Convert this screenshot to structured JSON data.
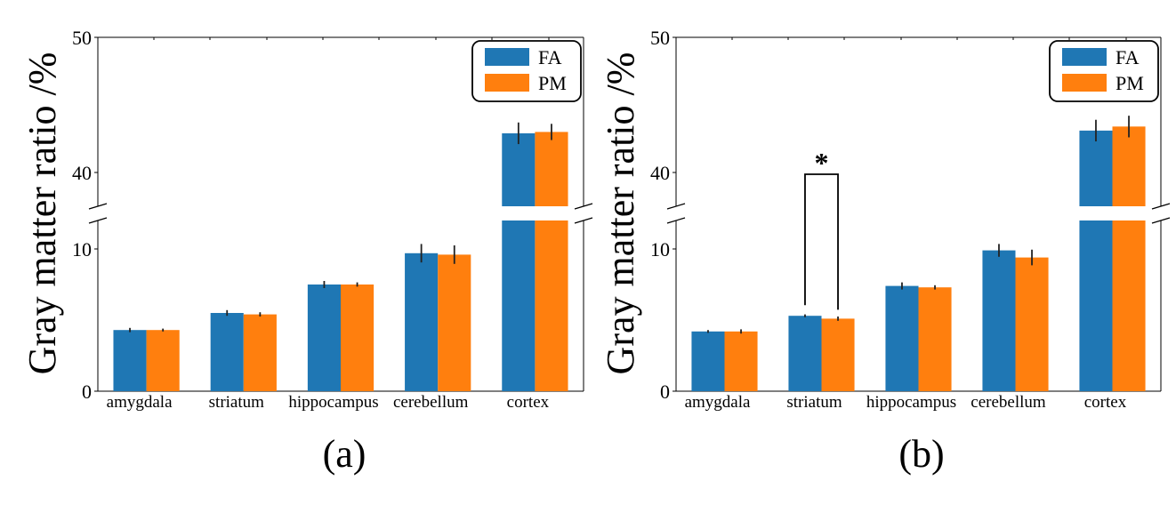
{
  "colors": {
    "FA": "#1f77b4",
    "PM": "#ff7f0e",
    "axis": "#000000"
  },
  "panel_labels": [
    "(a)",
    "(b)"
  ],
  "chart_data": [
    {
      "type": "bar",
      "categories": [
        "amygdala",
        "striatum",
        "hippocampus",
        "cerebellum",
        "cortex"
      ],
      "series": [
        {
          "name": "FA",
          "values": [
            4.3,
            5.5,
            7.5,
            9.7,
            42.9
          ],
          "errors": [
            0.15,
            0.2,
            0.25,
            0.65,
            0.8
          ]
        },
        {
          "name": "PM",
          "values": [
            4.3,
            5.4,
            7.5,
            9.6,
            43.0
          ],
          "errors": [
            0.1,
            0.15,
            0.15,
            0.65,
            0.6
          ]
        }
      ],
      "ylabel": "Gray matter ratio /%",
      "y_broken_axis": {
        "lower": [
          0,
          12
        ],
        "upper": [
          37.5,
          50
        ]
      },
      "yticks_lower": [
        "0",
        "10"
      ],
      "yticks_upper": [
        "40",
        "50"
      ],
      "legend": "top-right",
      "annotations": []
    },
    {
      "type": "bar",
      "categories": [
        "amygdala",
        "striatum",
        "hippocampus",
        "cerebellum",
        "cortex"
      ],
      "series": [
        {
          "name": "FA",
          "values": [
            4.2,
            5.3,
            7.4,
            9.9,
            43.1
          ],
          "errors": [
            0.1,
            0.1,
            0.25,
            0.45,
            0.8
          ]
        },
        {
          "name": "PM",
          "values": [
            4.2,
            5.1,
            7.3,
            9.4,
            43.4
          ],
          "errors": [
            0.15,
            0.15,
            0.15,
            0.55,
            0.8
          ]
        }
      ],
      "ylabel": "Gray matter ratio /%",
      "y_broken_axis": {
        "lower": [
          0,
          12
        ],
        "upper": [
          37.5,
          50
        ]
      },
      "yticks_lower": [
        "0",
        "10"
      ],
      "yticks_upper": [
        "40",
        "50"
      ],
      "legend": "top-right",
      "annotations": [
        {
          "category": "striatum",
          "text": "*"
        }
      ]
    }
  ]
}
